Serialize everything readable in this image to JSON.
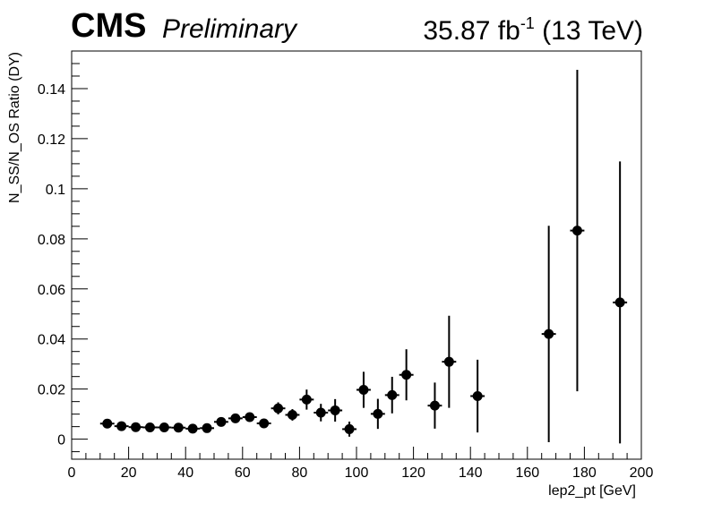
{
  "header": {
    "experiment": "CMS",
    "status": "Preliminary",
    "lumi_value": "35.87 fb",
    "lumi_exp": "-1",
    "energy": " (13 TeV)"
  },
  "chart_data": {
    "type": "scatter",
    "xlabel": "lep2_pt [GeV]",
    "ylabel": "N_SS/N_OS Ratio (DY)",
    "xlim": [
      0,
      200
    ],
    "ylim": [
      -0.008,
      0.155
    ],
    "xticks": [
      0,
      20,
      40,
      60,
      80,
      100,
      120,
      140,
      160,
      180,
      200
    ],
    "yticks": [
      0,
      0.02,
      0.04,
      0.06,
      0.08,
      0.1,
      0.12,
      0.14
    ],
    "ytick_labels": [
      "0",
      "0.02",
      "0.04",
      "0.06",
      "0.08",
      "0.1",
      "0.12",
      "0.14"
    ],
    "grid": false,
    "marker_color": "#000000",
    "points": [
      {
        "x": 12.5,
        "y": 0.0062,
        "xerr": 2.5,
        "yerr": 0.0007
      },
      {
        "x": 17.5,
        "y": 0.0052,
        "xerr": 2.5,
        "yerr": 0.0006
      },
      {
        "x": 22.5,
        "y": 0.0048,
        "xerr": 2.5,
        "yerr": 0.0006
      },
      {
        "x": 27.5,
        "y": 0.0047,
        "xerr": 2.5,
        "yerr": 0.0006
      },
      {
        "x": 32.5,
        "y": 0.0047,
        "xerr": 2.5,
        "yerr": 0.0006
      },
      {
        "x": 37.5,
        "y": 0.0046,
        "xerr": 2.5,
        "yerr": 0.0007
      },
      {
        "x": 42.5,
        "y": 0.0042,
        "xerr": 2.5,
        "yerr": 0.0007
      },
      {
        "x": 47.5,
        "y": 0.0044,
        "xerr": 2.5,
        "yerr": 0.0008
      },
      {
        "x": 52.5,
        "y": 0.0069,
        "xerr": 2.5,
        "yerr": 0.001
      },
      {
        "x": 57.5,
        "y": 0.0083,
        "xerr": 2.5,
        "yerr": 0.0012
      },
      {
        "x": 62.5,
        "y": 0.0088,
        "xerr": 2.5,
        "yerr": 0.0015
      },
      {
        "x": 67.5,
        "y": 0.0063,
        "xerr": 2.5,
        "yerr": 0.0015
      },
      {
        "x": 72.5,
        "y": 0.0123,
        "xerr": 2.5,
        "yerr": 0.0024
      },
      {
        "x": 77.5,
        "y": 0.0097,
        "xerr": 2.5,
        "yerr": 0.0023
      },
      {
        "x": 82.5,
        "y": 0.0158,
        "xerr": 2.5,
        "yerr": 0.004
      },
      {
        "x": 87.5,
        "y": 0.0106,
        "xerr": 2.5,
        "yerr": 0.0035
      },
      {
        "x": 92.5,
        "y": 0.0115,
        "xerr": 2.5,
        "yerr": 0.0045
      },
      {
        "x": 97.5,
        "y": 0.004,
        "xerr": 2.5,
        "yerr": 0.003
      },
      {
        "x": 102.5,
        "y": 0.0197,
        "xerr": 2.5,
        "yerr": 0.0072
      },
      {
        "x": 107.5,
        "y": 0.0101,
        "xerr": 2.5,
        "yerr": 0.006
      },
      {
        "x": 112.5,
        "y": 0.0176,
        "xerr": 2.5,
        "yerr": 0.0073
      },
      {
        "x": 117.5,
        "y": 0.0257,
        "xerr": 2.5,
        "yerr": 0.0102
      },
      {
        "x": 127.5,
        "y": 0.0134,
        "xerr": 2.5,
        "yerr": 0.0092
      },
      {
        "x": 132.5,
        "y": 0.0309,
        "xerr": 2.5,
        "yerr": 0.0184
      },
      {
        "x": 142.5,
        "y": 0.0172,
        "xerr": 2.5,
        "yerr": 0.0145
      },
      {
        "x": 167.5,
        "y": 0.042,
        "xerr": 2.5,
        "yerr": 0.0432
      },
      {
        "x": 177.5,
        "y": 0.0833,
        "xerr": 2.5,
        "yerr": 0.0642
      },
      {
        "x": 192.5,
        "y": 0.0546,
        "xerr": 2.5,
        "yerr": 0.0563
      }
    ]
  }
}
